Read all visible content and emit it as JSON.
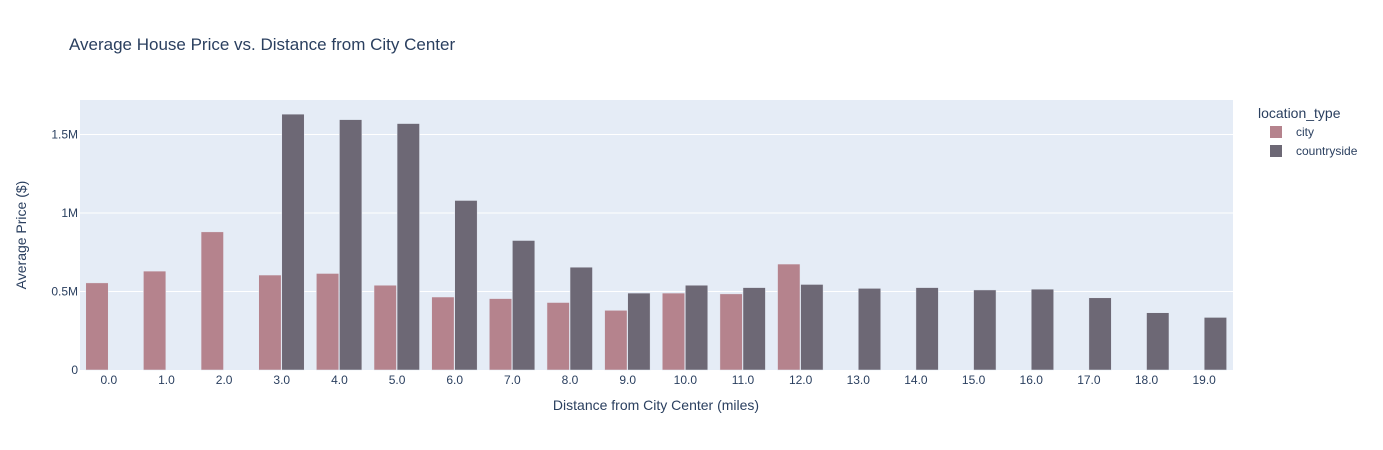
{
  "chart_data": {
    "type": "bar",
    "title": "Average House Price vs. Distance from City Center",
    "xlabel": "Distance from City Center (miles)",
    "ylabel": "Average Price ($)",
    "categories": [
      "0.0",
      "1.0",
      "2.0",
      "3.0",
      "4.0",
      "5.0",
      "6.0",
      "7.0",
      "8.0",
      "9.0",
      "10.0",
      "11.0",
      "12.0",
      "13.0",
      "14.0",
      "15.0",
      "16.0",
      "17.0",
      "18.0",
      "19.0"
    ],
    "ylim": [
      0,
      1720000
    ],
    "yticks": [
      {
        "value": 0,
        "label": "0"
      },
      {
        "value": 500000,
        "label": "0.5M"
      },
      {
        "value": 1000000,
        "label": "1M"
      },
      {
        "value": 1500000,
        "label": "1.5M"
      }
    ],
    "grid": true,
    "legend": {
      "title": "location_type",
      "position": "top-right"
    },
    "series": [
      {
        "name": "city",
        "color": "#b5838d",
        "values": [
          555000,
          630000,
          880000,
          605000,
          615000,
          540000,
          465000,
          455000,
          430000,
          380000,
          490000,
          485000,
          675000,
          null,
          null,
          null,
          null,
          null,
          null,
          null
        ]
      },
      {
        "name": "countryside",
        "color": "#6d6875",
        "values": [
          null,
          null,
          null,
          1630000,
          1595000,
          1570000,
          1080000,
          825000,
          655000,
          490000,
          540000,
          525000,
          545000,
          520000,
          525000,
          510000,
          515000,
          460000,
          365000,
          335000
        ]
      }
    ]
  }
}
